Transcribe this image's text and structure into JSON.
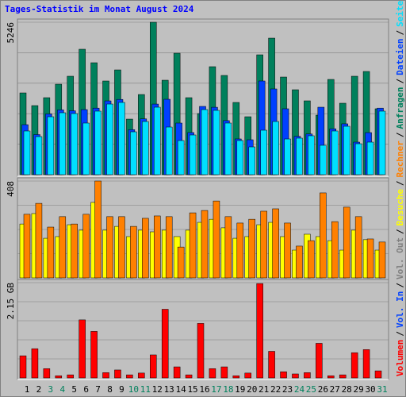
{
  "chart_data": [
    {
      "type": "bar",
      "title": "Tages-Statistik im Monat August 2024",
      "categories": [
        "1",
        "2",
        "3",
        "4",
        "5",
        "6",
        "7",
        "8",
        "9",
        "10",
        "11",
        "12",
        "13",
        "14",
        "15",
        "16",
        "17",
        "18",
        "19",
        "20",
        "21",
        "22",
        "23",
        "24",
        "25",
        "26",
        "27",
        "28",
        "29",
        "30",
        "31"
      ],
      "weekends": [
        "3",
        "4",
        "10",
        "11",
        "17",
        "18",
        "24",
        "25",
        "31"
      ],
      "weekend_color": "#00805c",
      "ylim": [
        0,
        5246
      ],
      "yticks": [
        5246
      ],
      "grid": true,
      "series": [
        {
          "name": "Anfragen",
          "color": "#00805c",
          "values": [
            2814,
            2377,
            2650,
            3114,
            3388,
            4317,
            3852,
            3224,
            3606,
            1912,
            2759,
            5246,
            3251,
            4180,
            2650,
            2104,
            3716,
            3415,
            2486,
            1994,
            4125,
            4699,
            3360,
            2923,
            2541,
            2049,
            3278,
            2459,
            3388,
            3552,
            2268
          ]
        },
        {
          "name": "Dateien",
          "color": "#0040ff",
          "values": [
            1721,
            1380,
            2090,
            2230,
            2200,
            2240,
            2290,
            2540,
            2590,
            1550,
            1920,
            2430,
            2595,
            1776,
            1450,
            2350,
            2320,
            1860,
            1230,
            1202,
            3224,
            2951,
            2268,
            1320,
            1400,
            2322,
            1580,
            1750,
            1120,
            1448,
            2290
          ]
        },
        {
          "name": "Seiten",
          "color": "#00e0ff",
          "values": [
            1503,
            1311,
            1994,
            2131,
            2104,
            1776,
            2186,
            2431,
            2486,
            1475,
            1830,
            2322,
            1639,
            1175,
            1366,
            2240,
            2213,
            1776,
            1175,
            956,
            1530,
            1830,
            1229,
            1257,
            1339,
            1011,
            1503,
            1666,
            1065,
            1120,
            2186
          ]
        }
      ]
    },
    {
      "type": "bar",
      "ylim": [
        0,
        408
      ],
      "yticks": [
        408
      ],
      "grid": true,
      "series": [
        {
          "name": "Besuche",
          "color": "#ffff00",
          "values": [
            227,
            271,
            167,
            174,
            224,
            201,
            318,
            201,
            217,
            174,
            201,
            194,
            201,
            174,
            201,
            234,
            247,
            211,
            167,
            174,
            224,
            234,
            174,
            117,
            184,
            174,
            157,
            117,
            201,
            161,
            117
          ]
        },
        {
          "name": "Rechner",
          "color": "#ff8000",
          "values": [
            268,
            314,
            214,
            258,
            227,
            268,
            408,
            258,
            258,
            217,
            251,
            261,
            258,
            130,
            274,
            284,
            324,
            258,
            231,
            247,
            281,
            291,
            231,
            134,
            157,
            358,
            237,
            298,
            258,
            164,
            151
          ]
        }
      ]
    },
    {
      "type": "bar",
      "ylim": [
        0,
        2.15
      ],
      "yticks": [
        {
          "value": 2.15,
          "label": "2.15 GB"
        }
      ],
      "grid": true,
      "legend_only": [
        {
          "name": "Vol. In",
          "color": "#0040ff"
        },
        {
          "name": "Vol. Out",
          "color": "#7f7f7f"
        }
      ],
      "separator": "/",
      "series": [
        {
          "name": "Volumen",
          "color": "#ff0000",
          "values": [
            0.5,
            0.66,
            0.21,
            0.05,
            0.07,
            1.31,
            1.05,
            0.12,
            0.18,
            0.07,
            0.11,
            0.52,
            1.55,
            0.25,
            0.07,
            1.23,
            0.21,
            0.25,
            0.05,
            0.11,
            2.13,
            0.6,
            0.14,
            0.09,
            0.12,
            0.78,
            0.05,
            0.07,
            0.57,
            0.64,
            0.16
          ]
        }
      ]
    }
  ]
}
